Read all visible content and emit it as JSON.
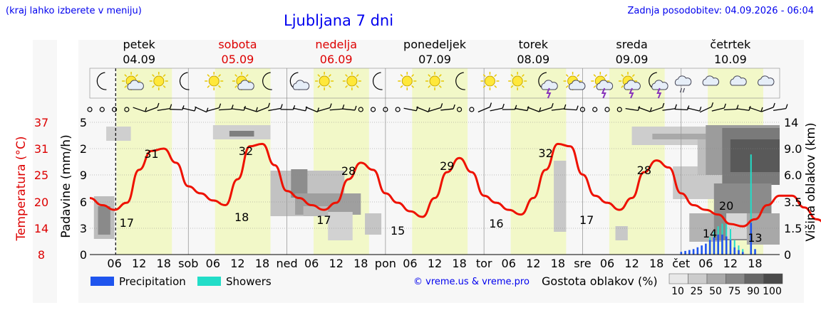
{
  "header": {
    "location_hint": "(kraj lahko izberete v meniju)",
    "title": "Ljubljana 7 dni",
    "updated": "Zadnja posodobitev: 04.09.2026 - 06:04"
  },
  "copyright": "© vreme.us & vreme.pro",
  "colors": {
    "weekend_red": "#dd0000",
    "temperature_line": "#ee1100",
    "day_band": "#f2f8c8",
    "precipitation": "#1f55ee",
    "showers": "#22ddc8",
    "link_blue": "#0000ee"
  },
  "days": [
    {
      "name": "petek",
      "date": "04.09",
      "weekend": false
    },
    {
      "name": "sobota",
      "date": "05.09",
      "weekend": true
    },
    {
      "name": "nedelja",
      "date": "06.09",
      "weekend": true
    },
    {
      "name": "ponedeljek",
      "date": "07.09",
      "weekend": false
    },
    {
      "name": "torek",
      "date": "08.09",
      "weekend": false
    },
    {
      "name": "sreda",
      "date": "09.09",
      "weekend": false
    },
    {
      "name": "četrtek",
      "date": "10.09",
      "weekend": false
    }
  ],
  "weather_icons": [
    "moon-icon",
    "sun-cloud-icon",
    "sun-icon",
    "moon-icon",
    "sun-icon",
    "sun-cloud-icon",
    "moon-icon",
    "moon-cloud-icon",
    "sun-icon",
    "sun-icon",
    "moon-icon",
    "sun-icon",
    "sun-icon",
    "moon-icon",
    "sun-icon",
    "sun-icon",
    "moon-storm-icon",
    "sun-cloud-icon",
    "sun-storm-icon",
    "sun-storm-icon",
    "moon-storm-icon",
    "rain-cloud-icon",
    "cloud-icon",
    "cloud-icon",
    "cloud-icon"
  ],
  "chart_data": {
    "type": "line",
    "x_labels": [
      "06",
      "12",
      "18",
      "sob",
      "06",
      "12",
      "18",
      "ned",
      "06",
      "12",
      "18",
      "pon",
      "06",
      "12",
      "18",
      "tor",
      "06",
      "12",
      "18",
      "sre",
      "06",
      "12",
      "18",
      "čet",
      "06",
      "12",
      "18"
    ],
    "left_axes": {
      "temperature": {
        "label": "Temperatura (°C)",
        "ticks": [
          "8",
          "14",
          "20",
          "25",
          "31",
          "37"
        ]
      },
      "precipitation": {
        "label": "Padavine (mm/h)",
        "ticks": [
          "0",
          "3",
          "6",
          "9",
          "2",
          "5"
        ]
      }
    },
    "right_axis": {
      "label": "Višina oblakov (km)",
      "ticks": [
        "0",
        "1.5",
        "3.5",
        "6.0",
        "9.0",
        "14"
      ]
    },
    "temperature_labels": [
      {
        "text": "17",
        "kind": "min",
        "day": 0
      },
      {
        "text": "31",
        "kind": "max",
        "day": 0
      },
      {
        "text": "18",
        "kind": "min",
        "day": 1
      },
      {
        "text": "32",
        "kind": "max",
        "day": 1
      },
      {
        "text": "17",
        "kind": "min",
        "day": 2
      },
      {
        "text": "28",
        "kind": "max",
        "day": 2
      },
      {
        "text": "15",
        "kind": "min",
        "day": 3
      },
      {
        "text": "29",
        "kind": "max",
        "day": 3
      },
      {
        "text": "16",
        "kind": "min",
        "day": 4
      },
      {
        "text": "32",
        "kind": "max",
        "day": 4
      },
      {
        "text": "17",
        "kind": "min",
        "day": 5
      },
      {
        "text": "28",
        "kind": "max",
        "day": 5
      },
      {
        "text": "14",
        "kind": "min",
        "day": 6
      },
      {
        "text": "20",
        "kind": "max",
        "day": 6
      },
      {
        "text": "13",
        "kind": "end",
        "day": 6
      }
    ],
    "temperature_series": {
      "hours": [
        0,
        3,
        6,
        9,
        12,
        15,
        18,
        21,
        24,
        27,
        30,
        33,
        36,
        39,
        42,
        45,
        48,
        51,
        54,
        57,
        60,
        63,
        66,
        69,
        72,
        75,
        78,
        81,
        84,
        87,
        90,
        93,
        96,
        99,
        102,
        105,
        108,
        111,
        114,
        117,
        120,
        123,
        126,
        129,
        132,
        135,
        138,
        141,
        144,
        147,
        150,
        153,
        156,
        159,
        162,
        165,
        168,
        171,
        174,
        177,
        180,
        183
      ],
      "celsius": [
        20,
        18.5,
        17.5,
        19,
        26,
        30,
        30.5,
        27.5,
        22.5,
        21,
        19.5,
        18.5,
        24,
        31,
        31.5,
        27,
        21.5,
        20,
        18.5,
        17.5,
        19,
        24,
        27.5,
        26,
        21,
        19,
        17.2,
        16,
        20,
        25.5,
        28.5,
        25.5,
        20.5,
        19,
        17.5,
        16.5,
        20,
        26,
        31.5,
        31,
        25,
        20.5,
        19,
        17.5,
        20,
        25.5,
        28,
        26.5,
        21,
        18.5,
        17.5,
        16.5,
        14.5,
        14,
        15.5,
        18.5,
        20.5,
        20.5,
        18,
        15.5,
        14,
        13
      ]
    },
    "precipitation_mm_h": {
      "hours": [
        144,
        145,
        146,
        147,
        148,
        149,
        150,
        151,
        152,
        153,
        154,
        155,
        156,
        157,
        158,
        159,
        160,
        161,
        162
      ],
      "precipitation": [
        0.3,
        0.4,
        0.5,
        0.6,
        0.8,
        1.0,
        1.2,
        1.6,
        1.9,
        2.2,
        2.2,
        2.0,
        1.6,
        0.8,
        0.5,
        0.3,
        0,
        3.5,
        0.6
      ],
      "showers": [
        0,
        0,
        0,
        0,
        0,
        0,
        0,
        0.3,
        0.6,
        0.9,
        1.2,
        1.4,
        1.2,
        0.8,
        0.5,
        0.3,
        0,
        11,
        0
      ]
    },
    "legend": {
      "precipitation": "Precipitation",
      "showers": "Showers",
      "cloud_title": "Gostota oblakov (%)",
      "cloud_scale": [
        "10",
        "25",
        "50",
        "75",
        "90",
        "100"
      ]
    }
  }
}
